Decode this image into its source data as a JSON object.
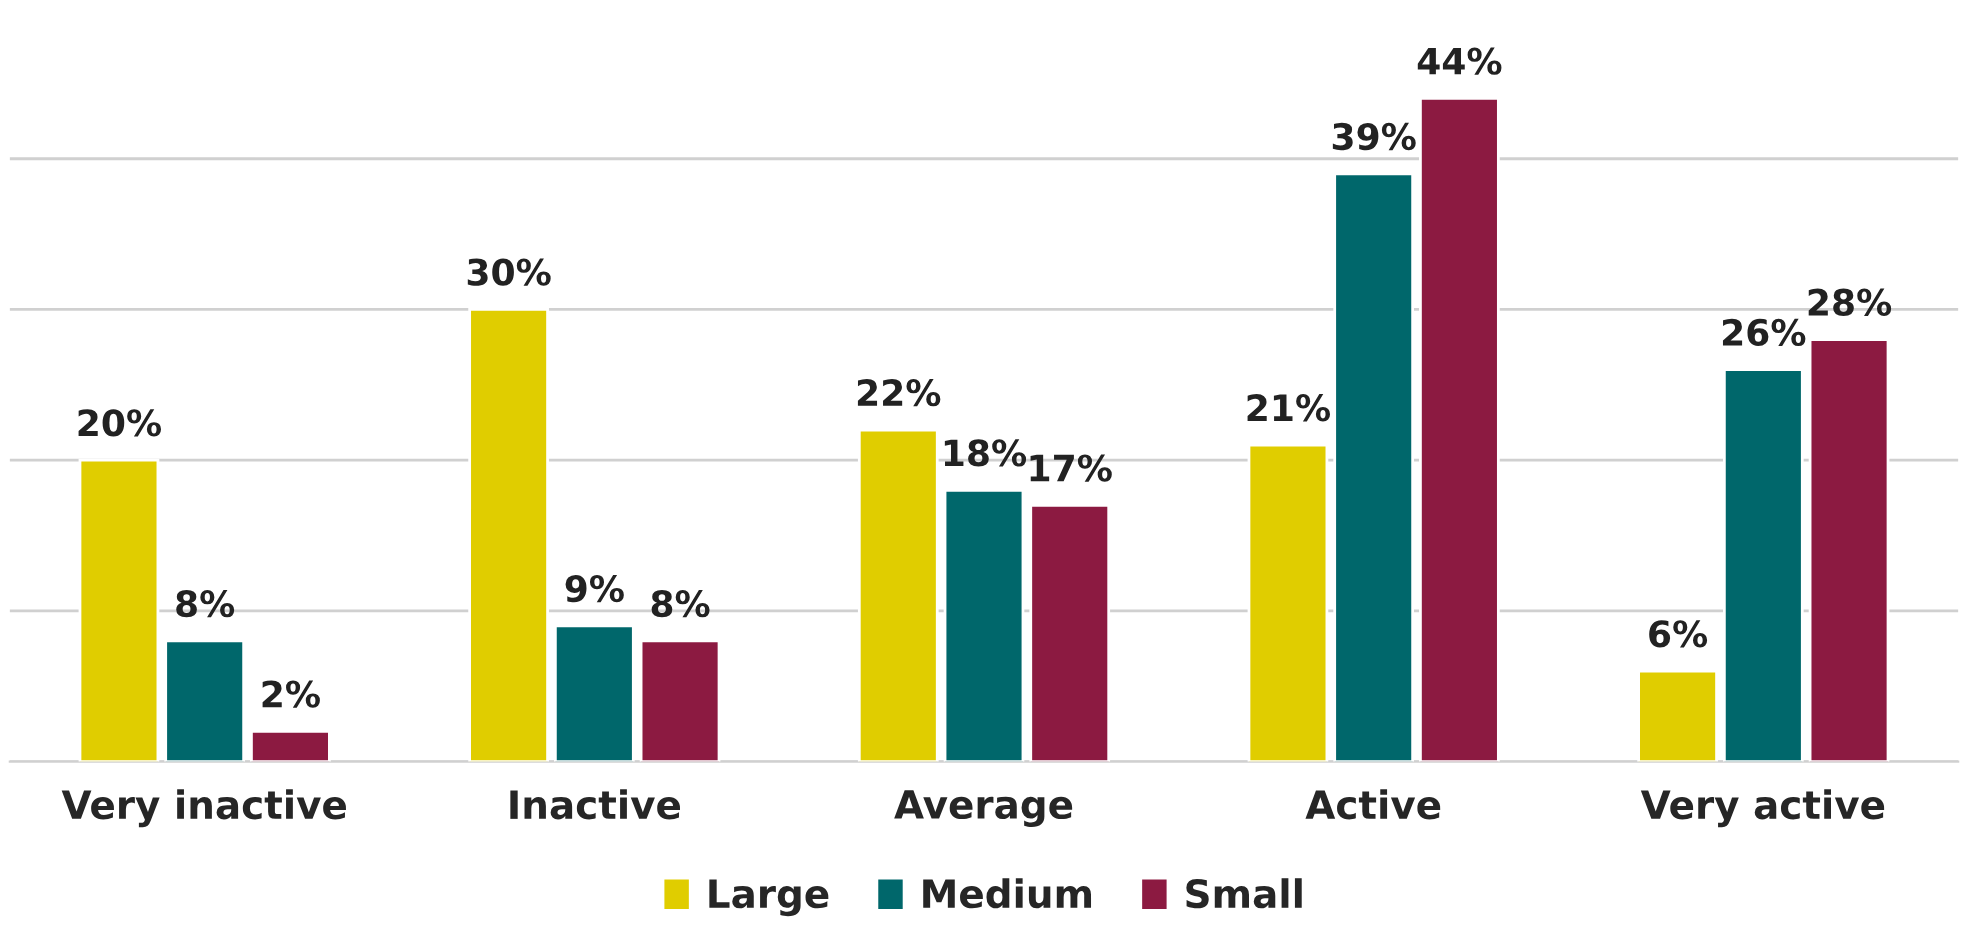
{
  "chart_data": {
    "type": "bar",
    "categories": [
      "Very inactive",
      "Inactive",
      "Average",
      "Active",
      "Very active"
    ],
    "series": [
      {
        "name": "Large",
        "color": "#e0cd00",
        "values": [
          20,
          30,
          22,
          21,
          6
        ],
        "value_labels": [
          "20%",
          "30%",
          "22%",
          "21%",
          "6%"
        ]
      },
      {
        "name": "Medium",
        "color": "#00676b",
        "values": [
          8,
          9,
          18,
          39,
          26
        ],
        "value_labels": [
          "8%",
          "9%",
          "18%",
          "39%",
          "26%"
        ]
      },
      {
        "name": "Small",
        "color": "#8c1a41",
        "values": [
          2,
          8,
          17,
          44,
          28
        ],
        "value_labels": [
          "2%",
          "8%",
          "17%",
          "44%",
          "28%"
        ]
      }
    ],
    "grid": "y",
    "legend": "bottom",
    "tick_labels": "x"
  }
}
